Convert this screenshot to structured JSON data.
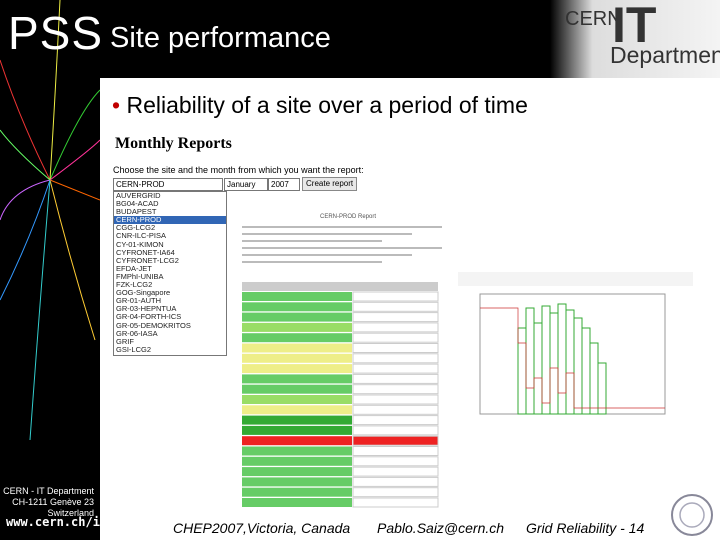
{
  "header": {
    "logo": "PSS",
    "title": "Site performance",
    "org_small": "CERN",
    "org_big": "IT",
    "org_dept": "Department"
  },
  "bullet": "Reliability of a site over a period of time",
  "sidebar": {
    "address": [
      "CERN - IT Department",
      "CH-1211 Genève 23",
      "Switzerland"
    ],
    "website": "www.cern.ch/it"
  },
  "screenshot": {
    "heading": "Monthly Reports",
    "instruction": "Choose the site and the month from which you want the report:",
    "site_select": "CERN-PROD",
    "month_select": "January",
    "year_select": "2007",
    "button": "Create report",
    "sites": [
      "AUVERGRID",
      "BG04-ACAD",
      "BUDAPEST",
      "CERN-PROD",
      "CGG-LCG2",
      "CNR-ILC-PISA",
      "CY-01-KIMON",
      "CYFRONET-IA64",
      "CYFRONET-LCG2",
      "EFDA-JET",
      "FMPhI-UNIBA",
      "FZK-LCG2",
      "GOG-Singapore",
      "GR-01-AUTH",
      "GR-03-HEPNTUA",
      "GR-04-FORTH-ICS",
      "GR-05-DEMOKRITOS",
      "GR-06-IASA",
      "GRIF",
      "GSI-LCG2"
    ],
    "report_title": "CERN-PROD Report"
  },
  "footer": {
    "conference": "CHEP2007,Victoria, Canada",
    "email": "Pablo.Saiz@cern.ch",
    "slide": "Grid Reliability - 14"
  }
}
